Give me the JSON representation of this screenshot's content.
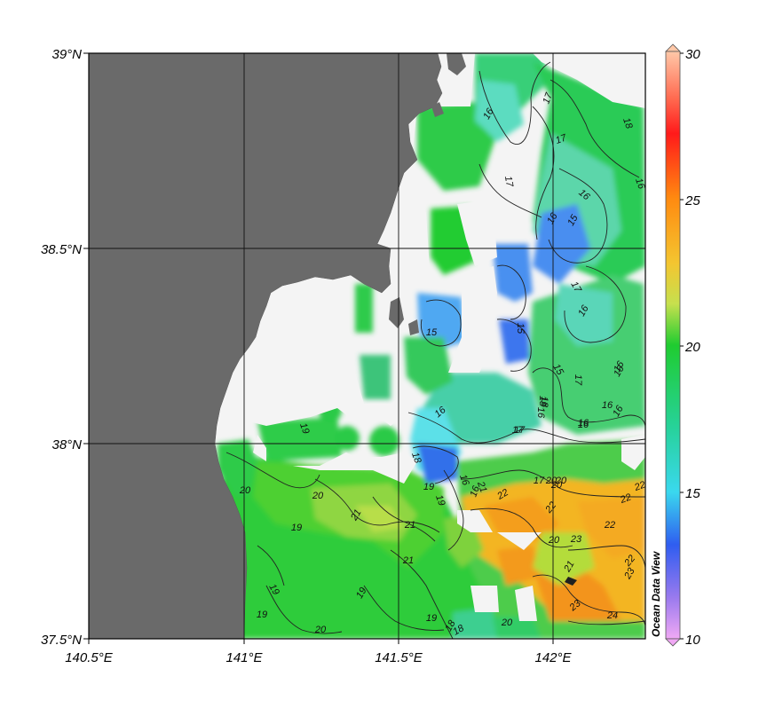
{
  "map": {
    "lat_labels": [
      "39°N",
      "38.5°N",
      "38°N",
      "37.5°N"
    ],
    "lon_labels": [
      "140.5°E",
      "141°E",
      "141.5°E",
      "142°E"
    ],
    "lat_range": [
      37.5,
      39.0
    ],
    "lon_range": [
      140.5,
      142.3
    ],
    "contour_labels": [
      "16",
      "17",
      "17",
      "17",
      "18",
      "16",
      "16",
      "16",
      "15",
      "15",
      "15",
      "16",
      "17",
      "17",
      "16",
      "18",
      "16",
      "15",
      "16",
      "16",
      "16",
      "17",
      "16",
      "18",
      "19",
      "18",
      "20",
      "21",
      "21",
      "22",
      "22",
      "22",
      "21",
      "20",
      "22",
      "22",
      "22",
      "23",
      "23",
      "24",
      "23",
      "21",
      "20",
      "19",
      "19",
      "20",
      "19",
      "19",
      "20",
      "18",
      "19",
      "21",
      "20",
      "19",
      "18",
      "20",
      "20",
      "19",
      "17",
      "16",
      "16",
      "16",
      "16",
      "17"
    ],
    "watermark": "Ocean Data View",
    "grid": true,
    "colors": {
      "land": "#6a6a6a",
      "nodata": "#f4f4f4",
      "frame": "#000000"
    }
  },
  "colorbar": {
    "ticks": [
      "30",
      "25",
      "20",
      "15",
      "10"
    ],
    "range": [
      10,
      30
    ],
    "stops": [
      "#ffc8a8",
      "#ff2020",
      "#ff8a10",
      "#f4c530",
      "#c6e04e",
      "#1fcc30",
      "#27d29a",
      "#3ad8ee",
      "#2f5df0",
      "#d880ee"
    ]
  }
}
